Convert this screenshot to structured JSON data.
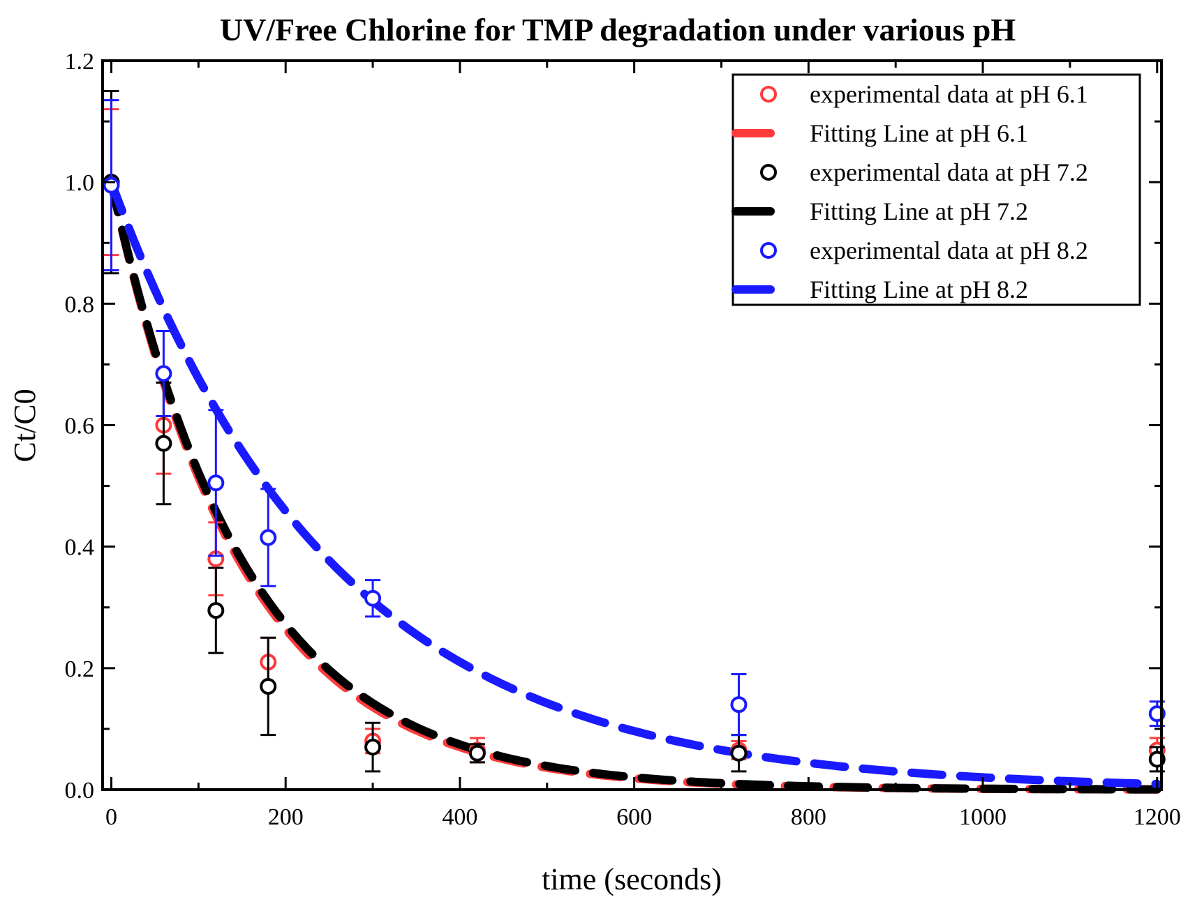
{
  "chart_data": {
    "type": "scatter",
    "title": "UV/Free Chlorine for TMP degradation under various pH",
    "xlabel": "time (seconds)",
    "ylabel": "Ct/C0",
    "xlim": [
      -10,
      1205
    ],
    "ylim": [
      0.0,
      1.2
    ],
    "xticks": [
      0,
      200,
      400,
      600,
      800,
      1000,
      1200
    ],
    "xtick_labels": [
      "0",
      "200",
      "400",
      "600",
      "800",
      "1000",
      "1200"
    ],
    "yticks": [
      0.0,
      0.2,
      0.4,
      0.6,
      0.8,
      1.0,
      1.2
    ],
    "ytick_labels": [
      "0.0",
      "0.2",
      "0.4",
      "0.6",
      "0.8",
      "1.0",
      "1.2"
    ],
    "legend_position": "top-right",
    "series": [
      {
        "name": "experimental data at pH 6.1",
        "kind": "points",
        "color": "#ff3b3b",
        "x": [
          0,
          60,
          120,
          180,
          300,
          420,
          720,
          1200
        ],
        "y": [
          1.0,
          0.6,
          0.38,
          0.21,
          0.08,
          0.065,
          0.065,
          0.065
        ],
        "err": [
          0.12,
          0.08,
          0.06,
          0.04,
          0.02,
          0.02,
          0.015,
          0.02
        ]
      },
      {
        "name": "Fitting Line at pH 6.1",
        "kind": "line",
        "color": "#ff3b3b",
        "k": 0.00665
      },
      {
        "name": "experimental data at pH 7.2",
        "kind": "points",
        "color": "#000000",
        "x": [
          0,
          60,
          120,
          180,
          300,
          420,
          720,
          1200
        ],
        "y": [
          1.0,
          0.57,
          0.295,
          0.17,
          0.07,
          0.06,
          0.06,
          0.05
        ],
        "err": [
          0.15,
          0.1,
          0.07,
          0.08,
          0.04,
          0.015,
          0.03,
          0.02
        ]
      },
      {
        "name": "Fitting Line at pH 7.2",
        "kind": "line",
        "color": "#000000",
        "k": 0.0065
      },
      {
        "name": "experimental data at pH 8.2",
        "kind": "points",
        "color": "#1a1aff",
        "x": [
          0,
          60,
          120,
          180,
          300,
          720,
          1200
        ],
        "y": [
          0.995,
          0.685,
          0.505,
          0.415,
          0.315,
          0.14,
          0.125
        ],
        "err": [
          0.14,
          0.07,
          0.12,
          0.08,
          0.03,
          0.05,
          0.02
        ]
      },
      {
        "name": "Fitting Line at pH 8.2",
        "kind": "line",
        "color": "#1a1aff",
        "k": 0.0039
      }
    ]
  }
}
